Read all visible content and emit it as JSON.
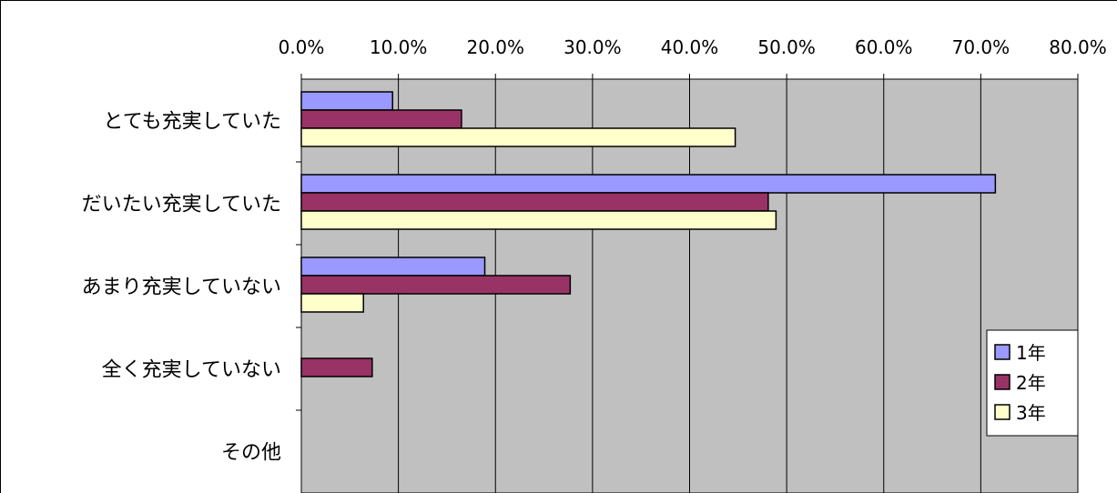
{
  "chart_data": {
    "type": "bar",
    "orientation": "horizontal",
    "categories": [
      "とても充実していた",
      "だいたい充実していた",
      "あまり充実していない",
      "全く充実していない",
      "その他"
    ],
    "xlim": [
      0,
      80
    ],
    "x_ticks": [
      "0.0%",
      "10.0%",
      "20.0%",
      "30.0%",
      "40.0%",
      "50.0%",
      "60.0%",
      "70.0%",
      "80.0%"
    ],
    "x_tick_values": [
      0,
      10,
      20,
      30,
      40,
      50,
      60,
      70,
      80
    ],
    "x_axis_position": "top",
    "grid": true,
    "plot_background": "#c0c0c0",
    "legend_position": "right",
    "series": [
      {
        "name": "1年",
        "color": "#9999ff",
        "values": [
          9.4,
          71.5,
          18.9,
          0,
          0
        ]
      },
      {
        "name": "2年",
        "color": "#993366",
        "values": [
          16.5,
          48.1,
          27.7,
          7.3,
          0
        ]
      },
      {
        "name": "3年",
        "color": "#ffffcc",
        "values": [
          44.7,
          48.9,
          6.4,
          0,
          0
        ]
      }
    ]
  }
}
